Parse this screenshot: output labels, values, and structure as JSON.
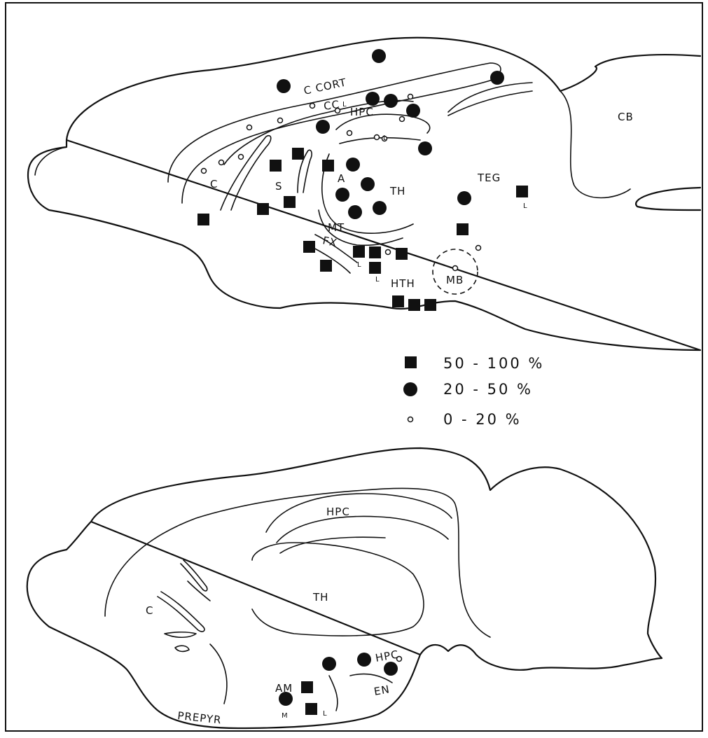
{
  "figure": {
    "upper_section": {
      "region_labels": {
        "c_cort": "C CORT",
        "cc": "CC",
        "hpc": "HPC",
        "cb": "CB",
        "c": "C",
        "s": "S",
        "a": "A",
        "th": "TH",
        "teg": "TEG",
        "mt": "MT",
        "fx": "FX",
        "hth": "HTH",
        "mb": "MB"
      },
      "small_marks": [
        "L",
        "L",
        "L",
        "L",
        "L"
      ]
    },
    "legend": {
      "items": [
        {
          "symbol": "filled-square",
          "label": "50 - 100 %"
        },
        {
          "symbol": "filled-circle",
          "label": "20 - 50 %"
        },
        {
          "symbol": "open-circle",
          "label": "0 - 20 %"
        }
      ]
    },
    "lower_section": {
      "region_labels": {
        "hpc_top": "HPC",
        "th": "TH",
        "c": "C",
        "hpc_lower": "HPC",
        "am": "AM",
        "en": "EN",
        "prepyr": "PREPYR"
      },
      "small_marks": [
        "M",
        "L"
      ]
    }
  }
}
